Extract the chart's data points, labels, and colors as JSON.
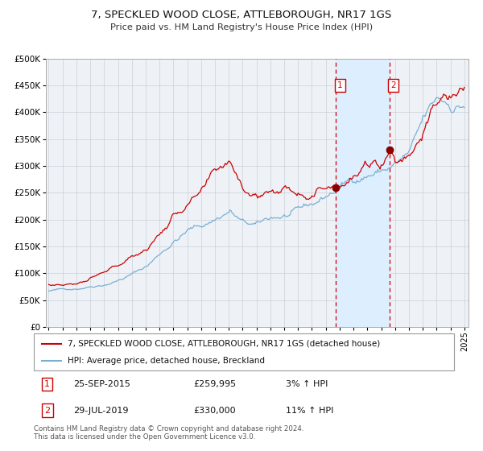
{
  "title": "7, SPECKLED WOOD CLOSE, ATTLEBOROUGH, NR17 1GS",
  "subtitle": "Price paid vs. HM Land Registry's House Price Index (HPI)",
  "ylim": [
    0,
    500000
  ],
  "yticks": [
    0,
    50000,
    100000,
    150000,
    200000,
    250000,
    300000,
    350000,
    400000,
    450000,
    500000
  ],
  "sale1_date": 2015.73,
  "sale1_price": 259995,
  "sale2_date": 2019.58,
  "sale2_price": 330000,
  "legend_line1": "7, SPECKLED WOOD CLOSE, ATTLEBOROUGH, NR17 1GS (detached house)",
  "legend_line2": "HPI: Average price, detached house, Breckland",
  "footer": "Contains HM Land Registry data © Crown copyright and database right 2024.\nThis data is licensed under the Open Government Licence v3.0.",
  "line_red": "#cc0000",
  "line_blue": "#7aafd4",
  "shade_color": "#ddeeff",
  "grid_color": "#c8d0d8",
  "plot_bg": "#eef2f7"
}
